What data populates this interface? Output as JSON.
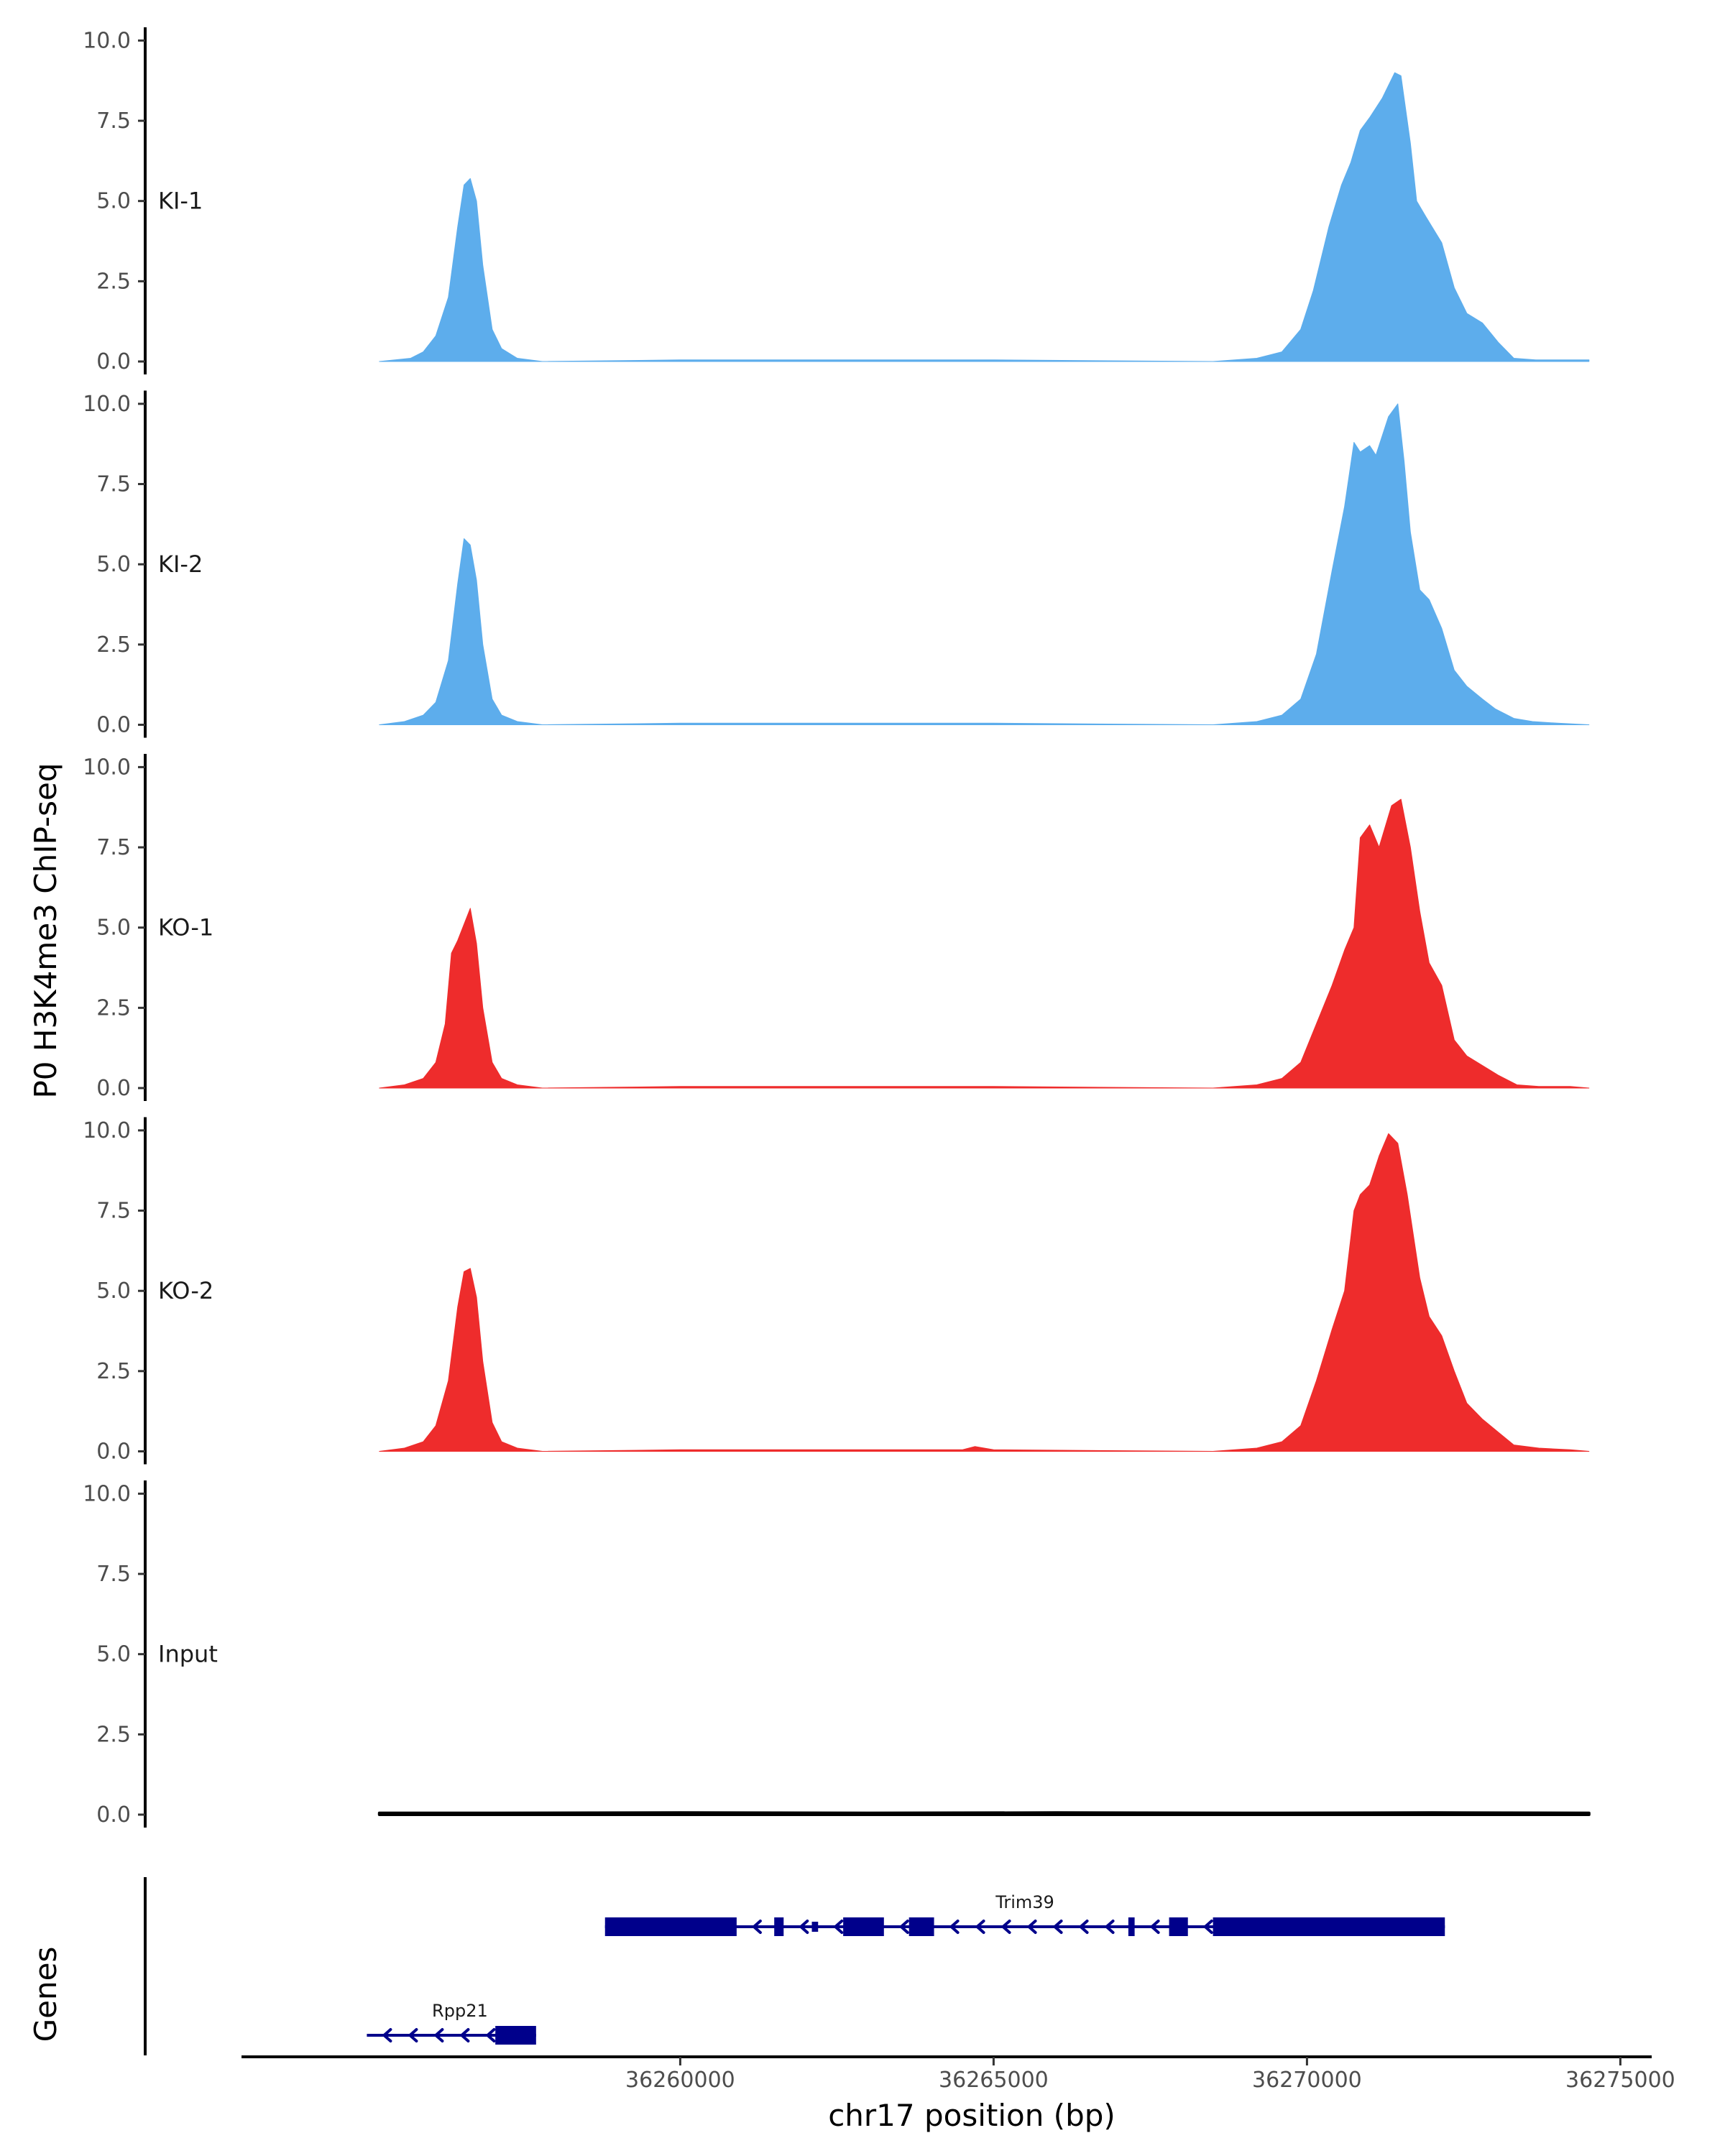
{
  "chart_data": {
    "type": "area",
    "ylabel": "P0 H3K4me3 ChIP-seq",
    "xlabel": "chr17 position (bp)",
    "chromosome": "chr17",
    "xlim": [
      36253000,
      36275500
    ],
    "x_ticks": [
      36260000,
      36265000,
      36270000,
      36275000
    ],
    "x_tick_labels": [
      "36260000",
      "36265000",
      "36270000",
      "36275000"
    ],
    "ylim": [
      0,
      10.3
    ],
    "y_ticks": [
      0,
      2.5,
      5,
      7.5,
      10
    ],
    "y_tick_labels": [
      "0.0",
      "2.5",
      "5.0",
      "7.5",
      "10.0"
    ],
    "tracks": [
      {
        "name": "KI-1",
        "color": "#5DADEC",
        "x": [
          36255200,
          36255700,
          36255900,
          36256100,
          36256300,
          36256450,
          36256550,
          36256650,
          36256750,
          36256850,
          36257000,
          36257150,
          36257400,
          36257800,
          36260000,
          36265000,
          36268500,
          36269200,
          36269600,
          36269900,
          36270100,
          36270350,
          36270550,
          36270700,
          36270850,
          36271000,
          36271200,
          36271400,
          36271500,
          36271650,
          36271750,
          36271900,
          36272150,
          36272350,
          36272550,
          36272800,
          36273050,
          36273300,
          36273650,
          36274100,
          36274500
        ],
        "y": [
          0,
          0.1,
          0.3,
          0.8,
          2.0,
          4.2,
          5.5,
          5.7,
          5.0,
          3.0,
          1.0,
          0.4,
          0.1,
          0,
          0.05,
          0.05,
          0,
          0.1,
          0.3,
          1.0,
          2.2,
          4.2,
          5.5,
          6.2,
          7.2,
          7.6,
          8.2,
          9.0,
          8.9,
          6.8,
          5.0,
          4.5,
          3.7,
          2.3,
          1.5,
          1.2,
          0.6,
          0.1,
          0.05,
          0.05,
          0.05
        ]
      },
      {
        "name": "KI-2",
        "color": "#5DADEC",
        "x": [
          36255200,
          36255600,
          36255900,
          36256100,
          36256300,
          36256450,
          36256550,
          36256650,
          36256750,
          36256850,
          36257000,
          36257150,
          36257400,
          36257800,
          36260000,
          36265000,
          36268500,
          36269200,
          36269600,
          36269900,
          36270150,
          36270400,
          36270600,
          36270750,
          36270850,
          36271000,
          36271100,
          36271300,
          36271450,
          36271550,
          36271650,
          36271800,
          36271950,
          36272150,
          36272350,
          36272550,
          36272800,
          36273000,
          36273300,
          36273600,
          36274000,
          36274500
        ],
        "y": [
          0,
          0.1,
          0.3,
          0.7,
          2.0,
          4.4,
          5.8,
          5.6,
          4.5,
          2.5,
          0.8,
          0.3,
          0.1,
          0,
          0.05,
          0.05,
          0,
          0.1,
          0.3,
          0.8,
          2.2,
          4.8,
          6.8,
          8.8,
          8.5,
          8.7,
          8.4,
          9.6,
          10.0,
          8.2,
          6.0,
          4.2,
          3.9,
          3.0,
          1.7,
          1.2,
          0.8,
          0.5,
          0.2,
          0.1,
          0.05,
          0
        ]
      },
      {
        "name": "KO-1",
        "color": "#EE2C2C",
        "x": [
          36255200,
          36255600,
          36255900,
          36256100,
          36256250,
          36256350,
          36256450,
          36256650,
          36256750,
          36256850,
          36257000,
          36257150,
          36257400,
          36257800,
          36260000,
          36265000,
          36268500,
          36269200,
          36269600,
          36269900,
          36270150,
          36270400,
          36270600,
          36270750,
          36270850,
          36271000,
          36271150,
          36271350,
          36271500,
          36271650,
          36271800,
          36271950,
          36272150,
          36272350,
          36272550,
          36272800,
          36273050,
          36273350,
          36273700,
          36274200,
          36274500
        ],
        "y": [
          0,
          0.1,
          0.3,
          0.8,
          2.0,
          4.2,
          4.6,
          5.6,
          4.5,
          2.5,
          0.8,
          0.3,
          0.1,
          0,
          0.05,
          0.05,
          0,
          0.1,
          0.3,
          0.8,
          2.0,
          3.2,
          4.3,
          5.0,
          7.8,
          8.2,
          7.5,
          8.8,
          9.0,
          7.5,
          5.5,
          3.9,
          3.2,
          1.5,
          1.0,
          0.7,
          0.4,
          0.1,
          0.05,
          0.05,
          0
        ]
      },
      {
        "name": "KO-2",
        "color": "#EE2C2C",
        "x": [
          36255200,
          36255600,
          36255900,
          36256100,
          36256300,
          36256450,
          36256550,
          36256650,
          36256750,
          36256850,
          36257000,
          36257150,
          36257400,
          36257800,
          36260000,
          36264500,
          36264700,
          36265000,
          36268500,
          36269200,
          36269600,
          36269900,
          36270150,
          36270400,
          36270600,
          36270750,
          36270850,
          36271000,
          36271150,
          36271300,
          36271450,
          36271600,
          36271800,
          36271950,
          36272150,
          36272350,
          36272550,
          36272800,
          36273050,
          36273300,
          36273700,
          36274200,
          36274500
        ],
        "y": [
          0,
          0.1,
          0.3,
          0.8,
          2.2,
          4.5,
          5.6,
          5.7,
          4.8,
          2.8,
          0.9,
          0.3,
          0.1,
          0,
          0.05,
          0.05,
          0.15,
          0.05,
          0,
          0.1,
          0.3,
          0.8,
          2.2,
          3.8,
          5.0,
          7.5,
          8.0,
          8.3,
          9.2,
          9.9,
          9.6,
          8.0,
          5.4,
          4.2,
          3.6,
          2.5,
          1.5,
          1.0,
          0.6,
          0.2,
          0.1,
          0.05,
          0
        ]
      },
      {
        "name": "Input",
        "color": "#000000",
        "x": [
          36255200,
          36257000,
          36260000,
          36263000,
          36266000,
          36269000,
          36272000,
          36274500
        ],
        "y": [
          0.05,
          0.05,
          0.06,
          0.05,
          0.06,
          0.05,
          0.06,
          0.05
        ]
      }
    ],
    "genes_title": "Genes",
    "genes": [
      {
        "name": "Trim39",
        "strand": "-",
        "color": "#00008B",
        "row": 0,
        "start": 36258800,
        "end": 36272200,
        "exons": [
          [
            36258800,
            36260900,
            "thick"
          ],
          [
            36261500,
            36261650,
            "thick"
          ],
          [
            36262600,
            36263250,
            "thick"
          ],
          [
            36263650,
            36264050,
            "thick"
          ],
          [
            36267150,
            36267250,
            "thick"
          ],
          [
            36267800,
            36268100,
            "thick"
          ],
          [
            36268500,
            36272200,
            "thick"
          ],
          [
            36262100,
            36262200,
            "thin"
          ]
        ]
      },
      {
        "name": "Rpp21",
        "strand": "-",
        "color": "#00008B",
        "row": 1,
        "start": 36255000,
        "end": 36257700,
        "exons": [
          [
            36257050,
            36257700,
            "thick"
          ]
        ]
      }
    ]
  }
}
